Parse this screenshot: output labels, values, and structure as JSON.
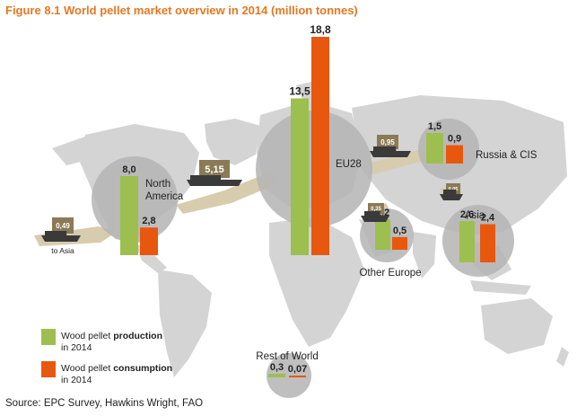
{
  "title": "Figure 8.1 World pellet market overview in 2014 (million tonnes)",
  "source": "Source: EPC Survey, Hawkins Wright, FAO",
  "colors": {
    "production": "#9dbf4f",
    "consumption": "#e8570e",
    "trade": "#8a7a55",
    "land": "#d4d4d4",
    "bubble": "#b4b4b4",
    "route": "#d8ccae",
    "title": "#e87722"
  },
  "legend": {
    "production_line1_a": "Wood pellet ",
    "production_line1_b": "production",
    "production_line2": "in 2014",
    "consumption_line1_a": "Wood pellet ",
    "consumption_line1_b": "consumption",
    "consumption_line2": "in 2014"
  },
  "chart_data": {
    "type": "bar",
    "title": "Figure 8.1 World pellet market overview in 2014 (million tonnes)",
    "unit": "million tonnes",
    "series": [
      {
        "name": "Wood pellet production in 2014",
        "values": [
          8.0,
          13.5,
          1.5,
          1.2,
          2.6,
          0.3
        ]
      },
      {
        "name": "Wood pellet consumption in 2014",
        "values": [
          2.8,
          18.8,
          0.9,
          0.5,
          2.4,
          0.07
        ]
      }
    ],
    "regions": [
      {
        "name_lines": [
          "North",
          "America"
        ],
        "production": 8.0,
        "consumption": 2.8,
        "production_label": "8,0",
        "consumption_label": "2,8"
      },
      {
        "name_lines": [
          "EU28"
        ],
        "production": 13.5,
        "consumption": 18.8,
        "production_label": "13,5",
        "consumption_label": "18,8"
      },
      {
        "name_lines": [
          "Russia & CIS"
        ],
        "production": 1.5,
        "consumption": 0.9,
        "production_label": "1,5",
        "consumption_label": "0,9"
      },
      {
        "name_lines": [
          "Other Europe"
        ],
        "production": 1.2,
        "consumption": 0.5,
        "production_label": "1,2",
        "consumption_label": "0,5"
      },
      {
        "name_lines": [
          "Asia"
        ],
        "production": 2.6,
        "consumption": 2.4,
        "production_label": "2,6",
        "consumption_label": "2,4"
      },
      {
        "name_lines": [
          "Rest of World"
        ],
        "production": 0.3,
        "consumption": 0.07,
        "production_label": "0,3",
        "consumption_label": "0,07"
      }
    ],
    "trade_flows": [
      {
        "from": "North America",
        "to": "EU28",
        "value": 5.15,
        "label": "5,15"
      },
      {
        "from": "North America",
        "to": "Asia",
        "value": 0.49,
        "label": "0,49",
        "note": "to Asia"
      },
      {
        "from": "Russia & CIS",
        "to": "EU28",
        "value": 0.95,
        "label": "0,95"
      },
      {
        "from": "Other Europe",
        "to": "EU28",
        "value": 0.35,
        "label": "0,35"
      },
      {
        "from": "Russia & CIS",
        "to": "Asia",
        "value": 0.05,
        "label": "0,05"
      }
    ]
  }
}
